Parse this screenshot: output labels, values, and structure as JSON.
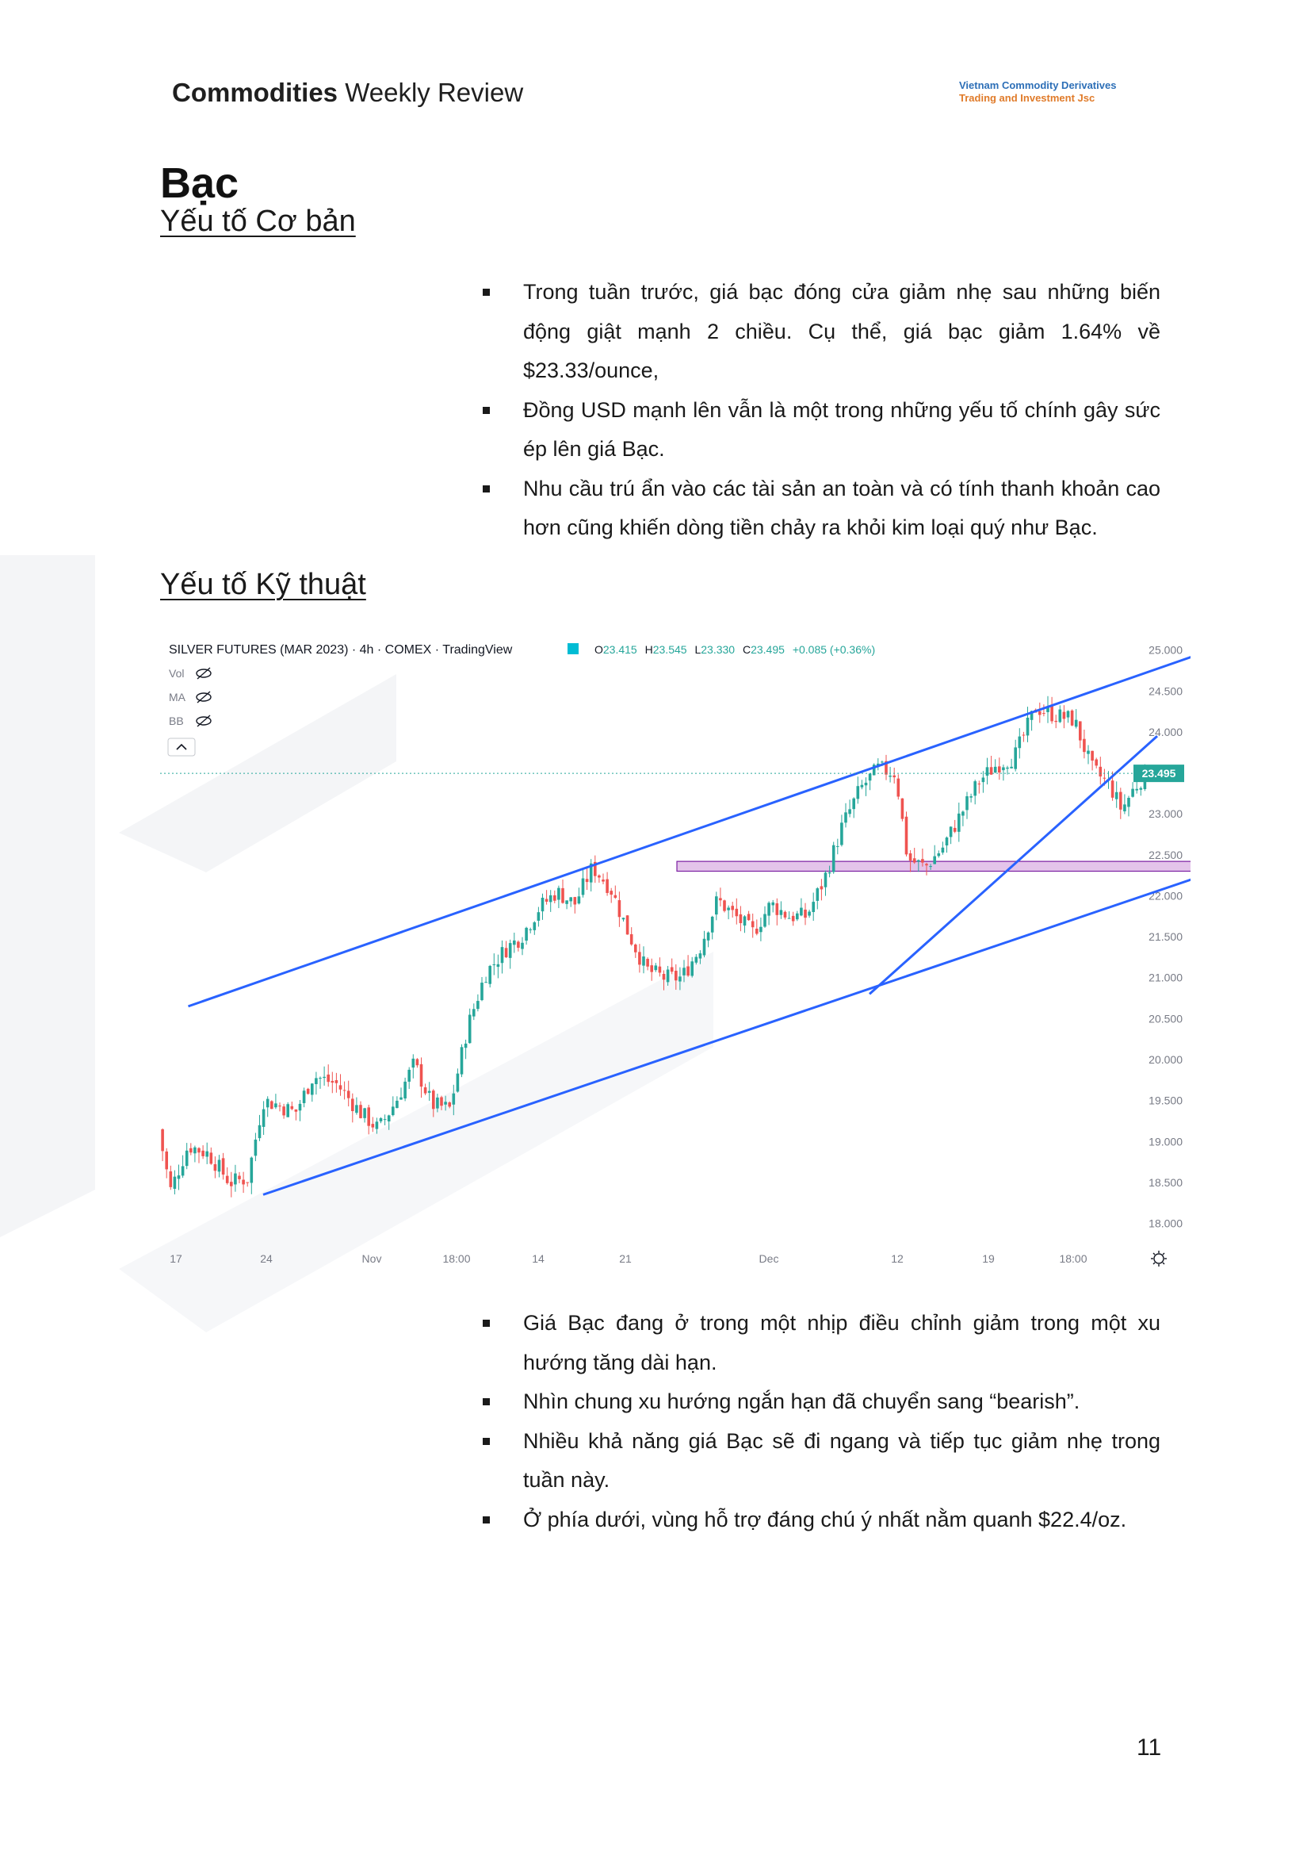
{
  "header": {
    "title_bold": "Commodities",
    "title_rest": " Weekly Review",
    "company_line1": "Vietnam Commodity Derivatives",
    "company_line2": "Trading and Investment Jsc",
    "colors": {
      "company_blue": "#2d6fb7",
      "company_orange": "#e07b2a"
    }
  },
  "section": {
    "title": "Bạc",
    "fundamental_heading": "Yếu tố Cơ bản",
    "technical_heading": "Yếu tố Kỹ thuật"
  },
  "fundamental_bullets": [
    "Trong tuần trước, giá bạc đóng cửa giảm nhẹ sau những biến động giật mạnh 2 chiều. Cụ thể, giá bạc giảm 1.64% về $23.33/ounce,",
    "Đồng USD mạnh lên vẫn là một trong những yếu tố chính gây sức ép lên giá Bạc.",
    "Nhu cầu trú ẩn vào các tài sản an toàn và có tính thanh khoản cao hơn cũng khiến dòng tiền chảy ra khỏi kim loại quý như Bạc."
  ],
  "technical_bullets": [
    "Giá Bạc đang ở trong một nhịp điều chỉnh giảm trong một xu hướng tăng dài hạn.",
    "Nhìn chung xu hướng ngắn hạn đã chuyển sang “bearish”.",
    "Nhiều khả năng giá Bạc sẽ đi ngang và tiếp tục giảm nhẹ trong tuần này.",
    "Ở phía dưới, vùng hỗ trợ đáng chú ý nhất nằm quanh $22.4/oz."
  ],
  "chart": {
    "symbol": "SILVER FUTURES (MAR 2023) · 4h · COMEX · TradingView",
    "ohlc": {
      "o_label": "O",
      "o": "23.415",
      "h_label": "H",
      "h": "23.545",
      "l_label": "L",
      "l": "23.330",
      "c_label": "C",
      "c": "23.495",
      "change": "+0.085 (+0.36%)"
    },
    "indicators": [
      "Vol",
      "MA",
      "BB"
    ],
    "last_price_label": "23.495",
    "colors": {
      "up": "#26a69a",
      "down": "#ef5350",
      "trendline": "#2962ff",
      "zone": "#ce93d8"
    }
  },
  "chart_data": {
    "type": "candlestick",
    "title": "SILVER FUTURES (MAR 2023) · 4h · COMEX · TradingView",
    "y_ticks": [
      "25.000",
      "24.500",
      "24.000",
      "23.500",
      "23.000",
      "22.500",
      "22.000",
      "21.500",
      "21.000",
      "20.500",
      "20.000",
      "19.500",
      "19.000",
      "18.500",
      "18.000"
    ],
    "ylim": [
      17.85,
      25.1
    ],
    "x_ticks": [
      "17",
      "24",
      "Nov",
      "18:00",
      "14",
      "21",
      "Dec",
      "12",
      "19",
      "18:00"
    ],
    "last_price": 23.495,
    "price_path": [
      [
        0,
        19.15
      ],
      [
        10,
        18.4
      ],
      [
        25,
        18.95
      ],
      [
        42,
        18.85
      ],
      [
        60,
        18.5
      ],
      [
        75,
        18.55
      ],
      [
        88,
        19.5
      ],
      [
        100,
        19.45
      ],
      [
        115,
        19.35
      ],
      [
        130,
        19.8
      ],
      [
        150,
        19.7
      ],
      [
        170,
        19.35
      ],
      [
        185,
        19.15
      ],
      [
        200,
        19.5
      ],
      [
        215,
        19.95
      ],
      [
        230,
        19.45
      ],
      [
        245,
        19.4
      ],
      [
        260,
        20.4
      ],
      [
        275,
        21.05
      ],
      [
        292,
        21.35
      ],
      [
        305,
        21.5
      ],
      [
        320,
        21.85
      ],
      [
        335,
        22.05
      ],
      [
        350,
        21.9
      ],
      [
        365,
        22.35
      ],
      [
        380,
        22.1
      ],
      [
        395,
        21.55
      ],
      [
        410,
        21.1
      ],
      [
        425,
        21.0
      ],
      [
        440,
        21.0
      ],
      [
        455,
        21.35
      ],
      [
        470,
        21.95
      ],
      [
        485,
        21.75
      ],
      [
        500,
        21.55
      ],
      [
        515,
        21.9
      ],
      [
        530,
        21.75
      ],
      [
        545,
        21.75
      ],
      [
        560,
        22.2
      ],
      [
        575,
        22.85
      ],
      [
        590,
        23.3
      ],
      [
        605,
        23.55
      ],
      [
        620,
        23.5
      ],
      [
        630,
        22.45
      ],
      [
        645,
        22.35
      ],
      [
        660,
        22.6
      ],
      [
        675,
        23.0
      ],
      [
        690,
        23.4
      ],
      [
        705,
        23.6
      ],
      [
        720,
        23.7
      ],
      [
        738,
        24.3
      ],
      [
        755,
        24.2
      ],
      [
        770,
        24.15
      ],
      [
        785,
        23.55
      ],
      [
        800,
        23.35
      ],
      [
        810,
        23.05
      ],
      [
        820,
        23.3
      ],
      [
        830,
        23.495
      ]
    ],
    "trendlines": [
      {
        "name": "channel-top",
        "from": [
          25,
          20.65
        ],
        "to": [
          895,
          25.05
        ]
      },
      {
        "name": "channel-bottom",
        "from": [
          88,
          18.35
        ],
        "to": [
          950,
          22.6
        ]
      },
      {
        "name": "short-term-support",
        "from": [
          598,
          20.8
        ],
        "to": [
          840,
          23.95
        ]
      }
    ],
    "zone": {
      "from_x": 436,
      "to_x": 910,
      "y_low": 22.3,
      "y_high": 22.42
    }
  },
  "page": {
    "number": "11"
  }
}
